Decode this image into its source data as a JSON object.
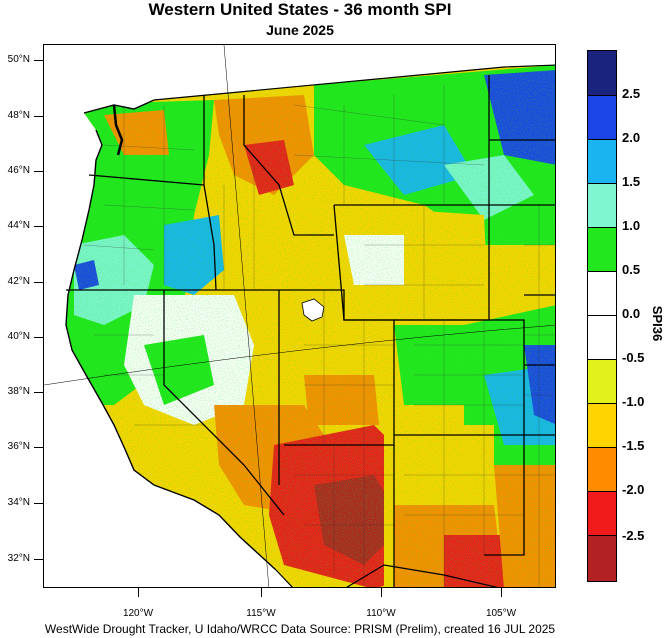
{
  "title": "Western United States - 36 month SPI",
  "subtitle": "June 2025",
  "footer": "WestWide Drought Tracker, U Idaho/WRCC Data Source: PRISM (Prelim), created 16 JUL 2025",
  "lat_labels": [
    "50°N",
    "48°N",
    "46°N",
    "44°N",
    "42°N",
    "40°N",
    "38°N",
    "36°N",
    "34°N",
    "32°N"
  ],
  "lon_labels": [
    "120°W",
    "115°W",
    "110°W",
    "105°W"
  ],
  "colorbar": {
    "title": "SPI36",
    "tick_labels": [
      "2.5",
      "2.0",
      "1.5",
      "1.0",
      "0.5",
      "0.0",
      "-0.5",
      "-1.0",
      "-1.5",
      "-2.0",
      "-2.5"
    ],
    "colors": [
      "#1a237e",
      "#1c45e8",
      "#1ab4f0",
      "#7ff5d2",
      "#22e61e",
      "#ffffff",
      "#ffffff",
      "#e0f21a",
      "#ffd400",
      "#ff8c00",
      "#f01a1a",
      "#b22222"
    ]
  },
  "map_colors": {
    "very_wet": "#1c45e8",
    "wet": "#1ab4f0",
    "mod_wet": "#7ff5d2",
    "slight_wet": "#22e61e",
    "neutral": "#ffffff",
    "slight_dry": "#e0f21a",
    "mod_dry": "#ffd400",
    "dry": "#ff8c00",
    "very_dry": "#f01a1a",
    "extreme_dry": "#b22222"
  }
}
